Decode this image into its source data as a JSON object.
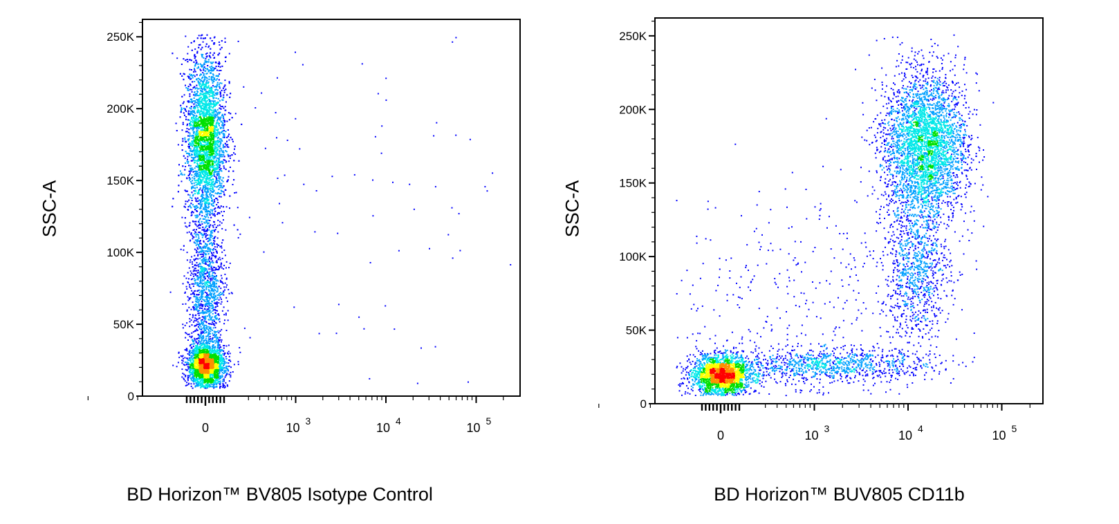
{
  "chart_data": [
    {
      "type": "scatter",
      "subtype": "flow cytometry pseudocolor density plot",
      "xlabel": "BD Horizon™ BV805 Isotype Control",
      "ylabel": "SSC-A",
      "x_scale": "biexponential",
      "ylim": [
        0,
        262144
      ],
      "y_ticks": [
        {
          "value": 0,
          "label": "0"
        },
        {
          "value": 50000,
          "label": "50K"
        },
        {
          "value": 100000,
          "label": "100K"
        },
        {
          "value": 150000,
          "label": "150K"
        },
        {
          "value": 200000,
          "label": "200K"
        },
        {
          "value": 250000,
          "label": "250K"
        }
      ],
      "x_ticks": [
        {
          "value": 0,
          "base": "0",
          "exp": ""
        },
        {
          "value": 1000,
          "base": "10",
          "exp": "3"
        },
        {
          "value": 10000,
          "base": "10",
          "exp": "4"
        },
        {
          "value": 100000,
          "base": "10",
          "exp": "5"
        }
      ],
      "populations": [
        {
          "x_center": 0,
          "y_center": 22000,
          "x_spread": 0.1,
          "y_spread": 7000,
          "events": 2300
        },
        {
          "x_center": 0,
          "y_center": 180000,
          "x_spread": 0.11,
          "y_spread": 28000,
          "events": 4600
        },
        {
          "x_center": 0,
          "y_center": 75000,
          "x_spread": 0.1,
          "y_spread": 30000,
          "events": 1400
        },
        {
          "x_center": 3000,
          "y_center": 140000,
          "x_spread": 0.9,
          "y_spread": 60000,
          "events": 80
        }
      ],
      "density_colors": [
        "#0000ff",
        "#00a0ff",
        "#00e8e8",
        "#00e000",
        "#ffff00",
        "#ff9000",
        "#ff0000"
      ]
    },
    {
      "type": "scatter",
      "subtype": "flow cytometry pseudocolor density plot",
      "xlabel": "BD Horizon™ BUV805 CD11b",
      "ylabel": "SSC-A",
      "x_scale": "biexponential",
      "ylim": [
        0,
        262144
      ],
      "y_ticks": [
        {
          "value": 0,
          "label": "0"
        },
        {
          "value": 50000,
          "label": "50K"
        },
        {
          "value": 100000,
          "label": "100K"
        },
        {
          "value": 150000,
          "label": "150K"
        },
        {
          "value": 200000,
          "label": "200K"
        },
        {
          "value": 250000,
          "label": "250K"
        }
      ],
      "x_ticks": [
        {
          "value": 0,
          "base": "0",
          "exp": ""
        },
        {
          "value": 1000,
          "base": "10",
          "exp": "3"
        },
        {
          "value": 10000,
          "base": "10",
          "exp": "4"
        },
        {
          "value": 100000,
          "base": "10",
          "exp": "5"
        }
      ],
      "populations": [
        {
          "x_center": 0,
          "y_center": 20000,
          "x_spread": 0.16,
          "y_spread": 6500,
          "events": 2200
        },
        {
          "x_center": 15000,
          "y_center": 175000,
          "x_spread": 0.22,
          "y_spread": 25000,
          "events": 3600
        },
        {
          "x_center": 12000,
          "y_center": 90000,
          "x_spread": 0.18,
          "y_spread": 22000,
          "events": 900
        },
        {
          "x_center": 1500,
          "y_center": 27000,
          "x_spread": 0.55,
          "y_spread": 5500,
          "events": 1000
        },
        {
          "x_center": 400,
          "y_center": 65000,
          "x_spread": 0.8,
          "y_spread": 40000,
          "events": 400
        }
      ],
      "density_colors": [
        "#0000ff",
        "#00a0ff",
        "#00e8e8",
        "#00e000",
        "#ffff00",
        "#ff9000",
        "#ff0000"
      ]
    }
  ]
}
